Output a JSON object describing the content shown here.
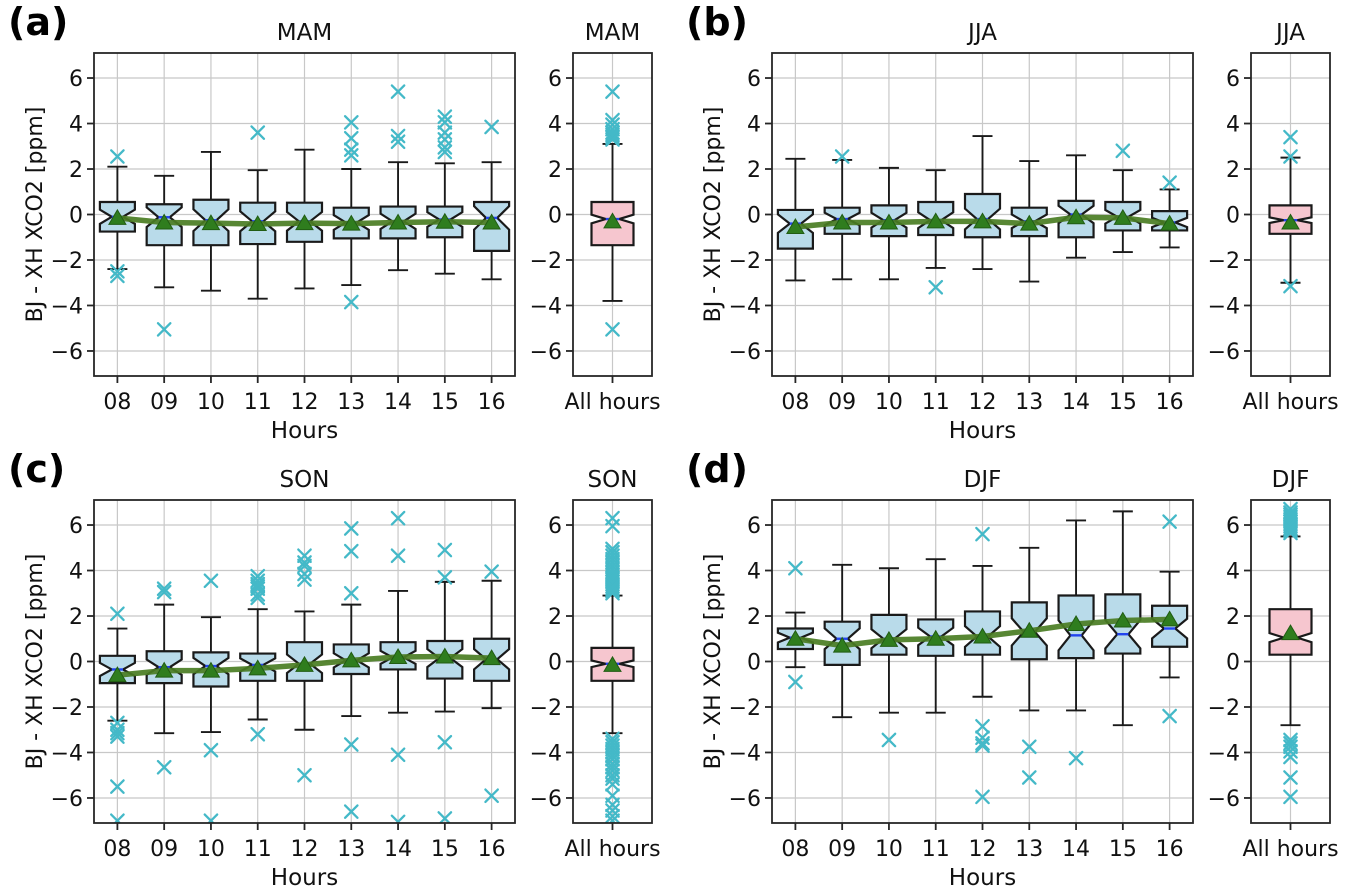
{
  "figure": {
    "ylabel": "BJ - XH XCO2 [ppm]",
    "xlabel": "Hours",
    "all_hours_tick_label": "All hours",
    "hours": [
      "08",
      "09",
      "10",
      "11",
      "12",
      "13",
      "14",
      "15",
      "16"
    ],
    "yticks": [
      -6,
      -4,
      -2,
      0,
      2,
      4,
      6
    ],
    "ylim": [
      -7.1,
      7.1
    ],
    "grid": true,
    "colors": {
      "box_fill": "#b9dbea",
      "all_box_fill": "#f6c6cf",
      "box_edge": "#1a1a1a",
      "median": "#2244ee",
      "mean_marker": "#2f7d1e",
      "mean_line": "#4a7d23",
      "flier": "#44b9c8",
      "grid": "#c8c8c8",
      "spine": "#262626",
      "text": "#111111"
    }
  },
  "chart_data": [
    {
      "type": "boxplot",
      "panel_label": "(a)",
      "season": "MAM",
      "hours_stats": [
        {
          "hour": "08",
          "whislo": -2.4,
          "q1": -0.75,
          "med": -0.1,
          "q3": 0.55,
          "whishi": 2.1,
          "mean": -0.15,
          "fliers": [
            2.55,
            -2.5,
            -2.7
          ]
        },
        {
          "hour": "09",
          "whislo": -3.2,
          "q1": -1.35,
          "med": -0.12,
          "q3": 0.45,
          "whishi": 1.7,
          "mean": -0.35,
          "fliers": [
            -5.05
          ]
        },
        {
          "hour": "10",
          "whislo": -3.35,
          "q1": -1.35,
          "med": -0.25,
          "q3": 0.65,
          "whishi": 2.75,
          "mean": -0.38,
          "fliers": []
        },
        {
          "hour": "11",
          "whislo": -3.7,
          "q1": -1.3,
          "med": -0.3,
          "q3": 0.52,
          "whishi": 1.95,
          "mean": -0.42,
          "fliers": [
            3.6
          ]
        },
        {
          "hour": "12",
          "whislo": -3.25,
          "q1": -1.2,
          "med": -0.3,
          "q3": 0.52,
          "whishi": 2.85,
          "mean": -0.38,
          "fliers": []
        },
        {
          "hour": "13",
          "whislo": -3.1,
          "q1": -1.05,
          "med": -0.35,
          "q3": 0.3,
          "whishi": 2.0,
          "mean": -0.4,
          "fliers": [
            4.05,
            3.35,
            2.85,
            2.6,
            -3.85
          ]
        },
        {
          "hour": "14",
          "whislo": -2.45,
          "q1": -1.05,
          "med": -0.3,
          "q3": 0.35,
          "whishi": 2.3,
          "mean": -0.35,
          "fliers": [
            5.4,
            3.45,
            3.2
          ]
        },
        {
          "hour": "15",
          "whislo": -2.6,
          "q1": -1.0,
          "med": -0.22,
          "q3": 0.35,
          "whishi": 2.25,
          "mean": -0.32,
          "fliers": [
            4.3,
            4.05,
            3.6,
            3.3,
            2.95,
            2.75
          ]
        },
        {
          "hour": "16",
          "whislo": -2.85,
          "q1": -1.6,
          "med": -0.15,
          "q3": 0.55,
          "whishi": 2.3,
          "mean": -0.35,
          "fliers": [
            3.85
          ]
        }
      ],
      "all_hours": {
        "whislo": -3.8,
        "q1": -1.35,
        "med": -0.2,
        "q3": 0.55,
        "whishi": 3.1,
        "mean": -0.3,
        "fliers": [
          5.4,
          4.15,
          3.95,
          3.75,
          3.6,
          3.5,
          3.4,
          3.3,
          -5.05
        ]
      }
    },
    {
      "type": "boxplot",
      "panel_label": "(b)",
      "season": "JJA",
      "hours_stats": [
        {
          "hour": "08",
          "whislo": -2.9,
          "q1": -1.5,
          "med": -0.4,
          "q3": 0.2,
          "whishi": 2.45,
          "mean": -0.55,
          "fliers": []
        },
        {
          "hour": "09",
          "whislo": -2.85,
          "q1": -0.85,
          "med": -0.2,
          "q3": 0.3,
          "whishi": 2.4,
          "mean": -0.35,
          "fliers": [
            2.55
          ]
        },
        {
          "hour": "10",
          "whislo": -2.85,
          "q1": -0.95,
          "med": -0.25,
          "q3": 0.4,
          "whishi": 2.05,
          "mean": -0.35,
          "fliers": []
        },
        {
          "hour": "11",
          "whislo": -2.35,
          "q1": -0.9,
          "med": -0.25,
          "q3": 0.55,
          "whishi": 1.95,
          "mean": -0.3,
          "fliers": [
            -3.2
          ]
        },
        {
          "hour": "12",
          "whislo": -2.4,
          "q1": -1.0,
          "med": -0.2,
          "q3": 0.9,
          "whishi": 3.45,
          "mean": -0.3,
          "fliers": []
        },
        {
          "hour": "13",
          "whislo": -2.95,
          "q1": -0.95,
          "med": -0.3,
          "q3": 0.3,
          "whishi": 2.35,
          "mean": -0.4,
          "fliers": []
        },
        {
          "hour": "14",
          "whislo": -1.9,
          "q1": -1.0,
          "med": 0.0,
          "q3": 0.6,
          "whishi": 2.6,
          "mean": -0.12,
          "fliers": []
        },
        {
          "hour": "15",
          "whislo": -1.65,
          "q1": -0.7,
          "med": -0.1,
          "q3": 0.55,
          "whishi": 1.95,
          "mean": -0.15,
          "fliers": [
            2.8
          ]
        },
        {
          "hour": "16",
          "whislo": -1.45,
          "q1": -0.7,
          "med": -0.35,
          "q3": 0.15,
          "whishi": 1.1,
          "mean": -0.4,
          "fliers": [
            1.4
          ]
        }
      ],
      "all_hours": {
        "whislo": -3.0,
        "q1": -0.85,
        "med": -0.25,
        "q3": 0.4,
        "whishi": 2.5,
        "mean": -0.35,
        "fliers": [
          3.4,
          2.55,
          -3.15
        ]
      }
    },
    {
      "type": "boxplot",
      "panel_label": "(c)",
      "season": "SON",
      "hours_stats": [
        {
          "hour": "08",
          "whislo": -2.6,
          "q1": -0.95,
          "med": -0.35,
          "q3": 0.25,
          "whishi": 1.45,
          "mean": -0.6,
          "fliers": [
            2.1,
            -2.7,
            -3.0,
            -3.15,
            -3.3,
            -5.5,
            -7.0
          ]
        },
        {
          "hour": "09",
          "whislo": -3.15,
          "q1": -0.95,
          "med": -0.25,
          "q3": 0.45,
          "whishi": 2.5,
          "mean": -0.4,
          "fliers": [
            3.2,
            3.05,
            -4.65
          ]
        },
        {
          "hour": "10",
          "whislo": -3.1,
          "q1": -1.1,
          "med": -0.2,
          "q3": 0.4,
          "whishi": 1.95,
          "mean": -0.4,
          "fliers": [
            3.55,
            -3.9,
            -7.0
          ]
        },
        {
          "hour": "11",
          "whislo": -2.55,
          "q1": -0.85,
          "med": -0.15,
          "q3": 0.35,
          "whishi": 2.3,
          "mean": -0.3,
          "fliers": [
            3.75,
            3.55,
            3.4,
            3.3,
            3.2,
            2.95,
            2.8,
            -3.2
          ]
        },
        {
          "hour": "12",
          "whislo": -3.0,
          "q1": -0.85,
          "med": -0.1,
          "q3": 0.85,
          "whishi": 2.2,
          "mean": -0.15,
          "fliers": [
            4.65,
            4.35,
            4.2,
            3.85,
            3.6,
            -5.0
          ]
        },
        {
          "hour": "13",
          "whislo": -2.4,
          "q1": -0.55,
          "med": 0.05,
          "q3": 0.75,
          "whishi": 2.5,
          "mean": 0.05,
          "fliers": [
            5.85,
            4.85,
            3.0,
            -3.65,
            -6.6
          ]
        },
        {
          "hour": "14",
          "whislo": -2.25,
          "q1": -0.35,
          "med": 0.18,
          "q3": 0.85,
          "whishi": 3.1,
          "mean": 0.2,
          "fliers": [
            6.3,
            4.65,
            -4.1,
            -7.05
          ]
        },
        {
          "hour": "15",
          "whislo": -2.2,
          "q1": -0.75,
          "med": 0.15,
          "q3": 0.9,
          "whishi": 3.5,
          "mean": 0.22,
          "fliers": [
            4.9,
            3.7,
            -3.55,
            -6.9
          ]
        },
        {
          "hour": "16",
          "whislo": -2.05,
          "q1": -0.85,
          "med": 0.1,
          "q3": 1.0,
          "whishi": 3.55,
          "mean": 0.15,
          "fliers": [
            3.95,
            -5.9
          ]
        }
      ],
      "all_hours": {
        "whislo": -3.15,
        "q1": -0.85,
        "med": -0.1,
        "q3": 0.6,
        "whishi": 2.9,
        "mean": -0.15,
        "fliers": [
          6.3,
          5.95,
          4.95,
          4.8,
          4.65,
          4.5,
          4.35,
          4.2,
          4.05,
          3.9,
          3.8,
          3.7,
          3.6,
          3.5,
          3.4,
          3.3,
          3.2,
          3.1,
          3.0,
          -3.4,
          -3.55,
          -3.7,
          -3.85,
          -4.0,
          -4.15,
          -4.3,
          -4.5,
          -4.65,
          -4.8,
          -5.0,
          -5.15,
          -5.4,
          -5.9,
          -6.3,
          -6.55,
          -6.8,
          -7.0
        ]
      }
    },
    {
      "type": "boxplot",
      "panel_label": "(d)",
      "season": "DJF",
      "hours_stats": [
        {
          "hour": "08",
          "whislo": -0.25,
          "q1": 0.55,
          "med": 1.05,
          "q3": 1.45,
          "whishi": 2.15,
          "mean": 1.0,
          "fliers": [
            4.1,
            -0.9
          ]
        },
        {
          "hour": "09",
          "whislo": -2.45,
          "q1": -0.15,
          "med": 1.0,
          "q3": 1.75,
          "whishi": 4.25,
          "mean": 0.7,
          "fliers": []
        },
        {
          "hour": "10",
          "whislo": -2.25,
          "q1": 0.3,
          "med": 1.0,
          "q3": 2.05,
          "whishi": 4.1,
          "mean": 0.95,
          "fliers": [
            -3.45
          ]
        },
        {
          "hour": "11",
          "whislo": -2.25,
          "q1": 0.25,
          "med": 1.1,
          "q3": 1.85,
          "whishi": 4.5,
          "mean": 1.0,
          "fliers": []
        },
        {
          "hour": "12",
          "whislo": -1.55,
          "q1": 0.3,
          "med": 1.1,
          "q3": 2.2,
          "whishi": 4.2,
          "mean": 1.1,
          "fliers": [
            5.6,
            -2.85,
            -3.35,
            -3.6,
            -3.7,
            -5.95
          ]
        },
        {
          "hour": "13",
          "whislo": -2.15,
          "q1": 0.1,
          "med": 1.3,
          "q3": 2.6,
          "whishi": 5.0,
          "mean": 1.35,
          "fliers": [
            -3.75,
            -5.1
          ]
        },
        {
          "hour": "14",
          "whislo": -2.15,
          "q1": 0.15,
          "med": 1.15,
          "q3": 2.9,
          "whishi": 6.2,
          "mean": 1.65,
          "fliers": [
            -4.25
          ]
        },
        {
          "hour": "15",
          "whislo": -2.8,
          "q1": 0.35,
          "med": 1.2,
          "q3": 2.95,
          "whishi": 6.6,
          "mean": 1.8,
          "fliers": []
        },
        {
          "hour": "16",
          "whislo": -0.7,
          "q1": 0.65,
          "med": 1.45,
          "q3": 2.45,
          "whishi": 3.95,
          "mean": 1.85,
          "fliers": [
            6.15,
            -2.4
          ]
        }
      ],
      "all_hours": {
        "whislo": -2.8,
        "q1": 0.3,
        "med": 1.05,
        "q3": 2.3,
        "whishi": 5.5,
        "mean": 1.25,
        "fliers": [
          6.7,
          6.55,
          6.45,
          6.35,
          6.25,
          6.15,
          6.05,
          5.95,
          5.85,
          5.75,
          5.65,
          -3.45,
          -3.6,
          -3.75,
          -3.95,
          -4.2,
          -5.1,
          -5.95
        ]
      }
    }
  ]
}
